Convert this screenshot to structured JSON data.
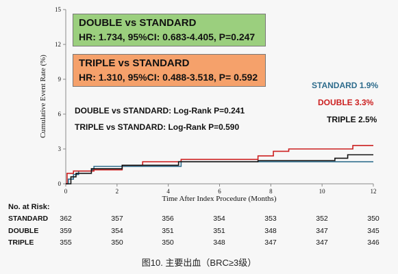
{
  "chart_data": {
    "type": "line",
    "step": true,
    "ylabel": "Cumulative Event Rate (%)",
    "xlabel": "Time After Index Procedure (Months)",
    "ylim": [
      0,
      15
    ],
    "xlim": [
      0,
      12
    ],
    "yticks": [
      "0",
      "3",
      "6",
      "9",
      "12",
      "15"
    ],
    "xticks": [
      "0",
      "2",
      "4",
      "6",
      "8",
      "10",
      "12"
    ],
    "series": [
      {
        "name": "STANDARD 1.9%",
        "color": "#2e6c8c",
        "x": [
          0,
          0.1,
          0.3,
          0.5,
          1.0,
          1.1,
          4.5,
          8.0,
          11.1,
          12
        ],
        "y": [
          0,
          0.4,
          0.8,
          1.1,
          1.2,
          1.5,
          1.9,
          1.9,
          1.9,
          1.9
        ]
      },
      {
        "name": "DOUBLE 3.3%",
        "color": "#cc1f1f",
        "x": [
          0,
          0.05,
          0.3,
          1.1,
          2.2,
          3.0,
          4.5,
          7.5,
          8.1,
          8.7,
          10.6,
          11.2,
          12
        ],
        "y": [
          0,
          0.9,
          1.1,
          1.2,
          1.6,
          1.9,
          2.1,
          2.4,
          2.8,
          3.0,
          3.0,
          3.3,
          3.3
        ]
      },
      {
        "name": "TRIPLE 2.5%",
        "color": "#111111",
        "x": [
          0,
          0.2,
          0.4,
          1.0,
          2.2,
          4.4,
          7.5,
          10.5,
          11.0,
          12
        ],
        "y": [
          0,
          0.6,
          0.9,
          1.3,
          1.6,
          1.9,
          2.0,
          2.2,
          2.5,
          2.5
        ]
      }
    ]
  },
  "boxes": {
    "double_title": "DOUBLE vs STANDARD",
    "double_stats": "HR: 1.734, 95%CI: 0.683-4.405, P=0.247",
    "triple_title": "TRIPLE vs STANDARD",
    "triple_stats": "HR: 1.310, 95%CI: 0.488-3.518, P= 0.592"
  },
  "logrank": {
    "double": "DOUBLE vs STANDARD: Log-Rank P=0.241",
    "triple": "TRIPLE vs STANDARD: Log-Rank P=0.590"
  },
  "legend": {
    "standard": "STANDARD 1.9%",
    "double": "DOUBLE 3.3%",
    "triple": "TRIPLE 2.5%"
  },
  "risk_table": {
    "header": "No. at Risk:",
    "rows": [
      {
        "label": "STANDARD",
        "values": [
          "362",
          "357",
          "356",
          "354",
          "353",
          "352",
          "350"
        ]
      },
      {
        "label": "DOUBLE",
        "values": [
          "359",
          "354",
          "351",
          "351",
          "348",
          "347",
          "345"
        ]
      },
      {
        "label": "TRIPLE",
        "values": [
          "355",
          "350",
          "350",
          "348",
          "347",
          "347",
          "346"
        ]
      }
    ]
  },
  "caption": "图10. 主要出血（BRC≥3级）"
}
